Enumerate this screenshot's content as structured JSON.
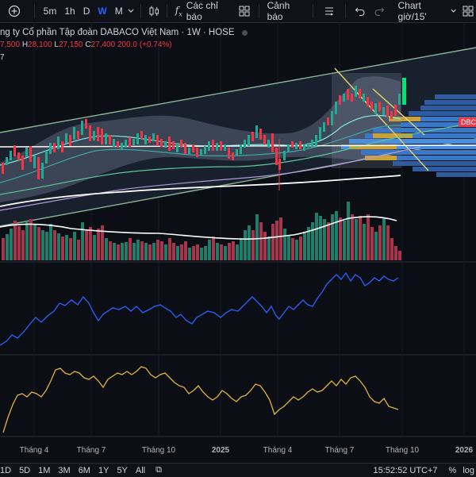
{
  "toolbar": {
    "add_icon": "plus-circle-icon",
    "timeframes": [
      "5m",
      "1h",
      "D",
      "W",
      "M"
    ],
    "active_timeframe": "W",
    "indicators_label": "Các chỉ báo",
    "alerts_label": "Cảnh báo",
    "template_label": "Chart giờ/15'"
  },
  "legend": {
    "title": "ng ty Cổ phần Tập đoàn DABACO Việt Nam · 1W · HOSE",
    "open_label": "7,500",
    "high_label": "H",
    "high_value": "28,100",
    "low_label": "L",
    "low_value": "27,150",
    "close_label": "C",
    "close_value": "27,400",
    "change": "200.0 (+0.74%)",
    "indicator_value": "7"
  },
  "price_tag": "DBC",
  "time_axis": [
    "Tháng 4",
    "Tháng 7",
    "Tháng 10",
    "2025",
    "Tháng 4",
    "Tháng 7",
    "Tháng 10",
    "2026"
  ],
  "bottom": {
    "ranges": [
      "1D",
      "5D",
      "1M",
      "3M",
      "6M",
      "1Y",
      "5Y",
      "All"
    ],
    "clock": "15:52:52 UTC+7",
    "percent": "%",
    "log": "log"
  },
  "colors": {
    "up": "#22ab94",
    "down": "#f23645",
    "blue_line": "#2962ff",
    "yellow_line": "#e0b33c"
  }
}
